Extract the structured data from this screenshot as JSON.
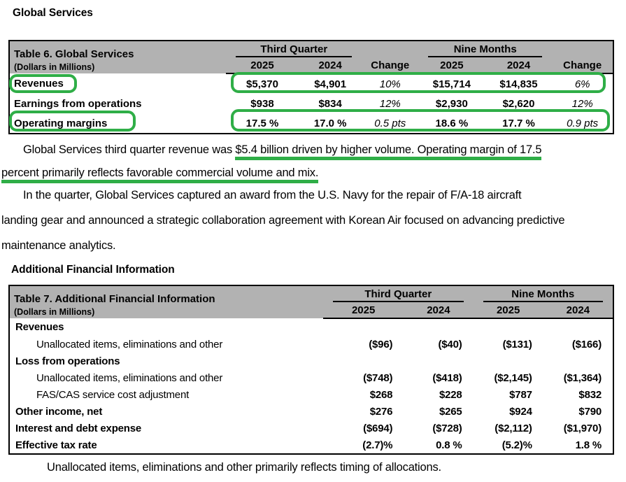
{
  "page": {
    "heading1": "Global Services",
    "heading2": "Additional Financial Information"
  },
  "table6": {
    "title": "Table 6. Global Services",
    "subtitle": "(Dollars in Millions)",
    "col_groups": [
      "Third Quarter",
      "Nine Months"
    ],
    "col_headers": [
      "2025",
      "2024",
      "Change",
      "2025",
      "2024",
      "Change"
    ],
    "rows": [
      {
        "label": "Revenues",
        "values": [
          "$5,370",
          "$4,901",
          "10%",
          "$15,714",
          "$14,835",
          "6%"
        ]
      },
      {
        "label": "Earnings from operations",
        "values": [
          "$938",
          "$834",
          "12%",
          "$2,930",
          "$2,620",
          "12%"
        ]
      },
      {
        "label": "Operating margins",
        "values": [
          "17.5 %",
          "17.0 %",
          "0.5 pts",
          "18.6 %",
          "17.7 %",
          "0.9 pts"
        ]
      }
    ]
  },
  "table7": {
    "title": "Table 7. Additional Financial Information",
    "subtitle": "(Dollars in Millions)",
    "col_groups": [
      "Third Quarter",
      "Nine Months"
    ],
    "col_headers": [
      "2025",
      "2024",
      "2025",
      "2024"
    ],
    "rows": [
      {
        "label": "Revenues",
        "style": "section",
        "values": [
          "",
          "",
          "",
          ""
        ]
      },
      {
        "label": "Unallocated items, eliminations and other",
        "style": "indent",
        "values": [
          "($96)",
          "($40)",
          "($131)",
          "($166)"
        ]
      },
      {
        "label": "Loss from operations",
        "style": "section",
        "values": [
          "",
          "",
          "",
          ""
        ]
      },
      {
        "label": "Unallocated items, eliminations and other",
        "style": "indent",
        "values": [
          "($748)",
          "($418)",
          "($2,145)",
          "($1,364)"
        ]
      },
      {
        "label": "FAS/CAS service cost adjustment",
        "style": "indent",
        "values": [
          "$268",
          "$228",
          "$787",
          "$832"
        ]
      },
      {
        "label": "Other income, net",
        "style": "section",
        "values": [
          "$276",
          "$265",
          "$924",
          "$790"
        ]
      },
      {
        "label": "Interest and debt expense",
        "style": "section",
        "values": [
          "($694)",
          "($728)",
          "($2,112)",
          "($1,970)"
        ]
      },
      {
        "label": "Effective tax rate",
        "style": "section",
        "values": [
          "(2.7)%",
          "0.8 %",
          "(5.2)%",
          "1.8 %"
        ]
      }
    ]
  },
  "paragraphs": {
    "p1_seg1": "Global Services third quarter revenue was ",
    "p1_seg2": "$5.4 billion driven by higher volume. Operating margin of 17.5",
    "p1_line2": "percent primarily reflects favorable commercial volume and mix.",
    "p2_line1": "In the quarter, Global Services captured an award from the U.S. Navy for the repair of F/A-18 aircraft",
    "p2_line2": "landing gear and announced a strategic collaboration agreement with Korean Air focused on advancing predictive",
    "p2_line3": "maintenance analytics.",
    "p3": "Unallocated items, eliminations and other primarily reflects timing of allocations."
  },
  "annotations": {
    "highlight_color": "#2fae47",
    "highlighted_items": [
      "Revenues label",
      "Revenues values row",
      "Operating margins label",
      "Operating margins values row",
      "revenue and margin commentary underline"
    ]
  }
}
